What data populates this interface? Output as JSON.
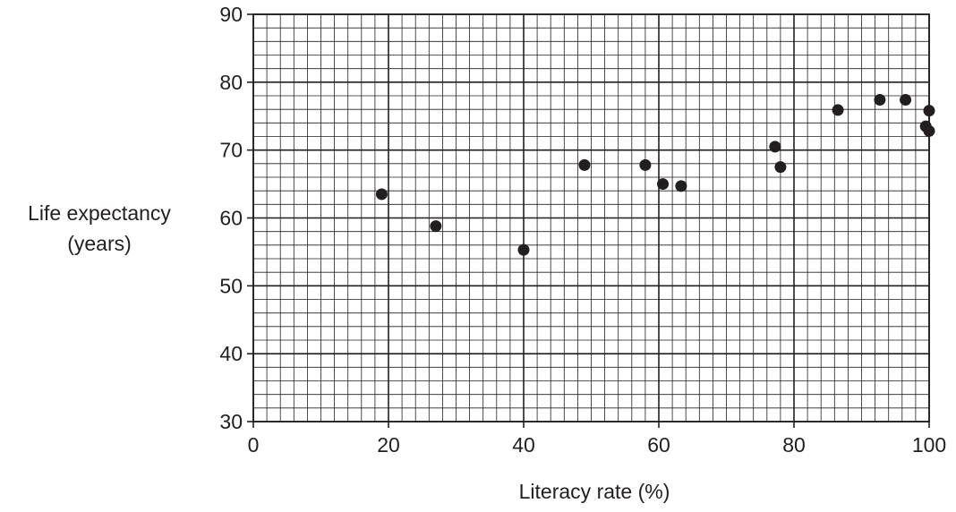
{
  "chart_data": {
    "type": "scatter",
    "title": "",
    "xlabel": "Literacy rate (%)",
    "ylabel_lines": [
      "Life expectancy",
      "(years)"
    ],
    "xlim": [
      0,
      100
    ],
    "ylim": [
      30,
      90
    ],
    "x_ticks": [
      0,
      20,
      40,
      60,
      80,
      100
    ],
    "y_ticks": [
      30,
      40,
      50,
      60,
      70,
      80,
      90
    ],
    "grid": true,
    "points": [
      {
        "x": 19,
        "y": 63.5
      },
      {
        "x": 27,
        "y": 58.8
      },
      {
        "x": 40,
        "y": 55.3
      },
      {
        "x": 49,
        "y": 67.8
      },
      {
        "x": 58,
        "y": 67.8
      },
      {
        "x": 60.6,
        "y": 65
      },
      {
        "x": 63.3,
        "y": 64.7
      },
      {
        "x": 77.2,
        "y": 70.5
      },
      {
        "x": 78,
        "y": 67.5
      },
      {
        "x": 86.5,
        "y": 75.9
      },
      {
        "x": 92.7,
        "y": 77.4
      },
      {
        "x": 96.5,
        "y": 77.4
      },
      {
        "x": 99.5,
        "y": 73.5
      },
      {
        "x": 100,
        "y": 75.8
      },
      {
        "x": 100,
        "y": 72.8
      }
    ],
    "colors": {
      "ink": "#231f20",
      "grid": "#231f20"
    }
  }
}
